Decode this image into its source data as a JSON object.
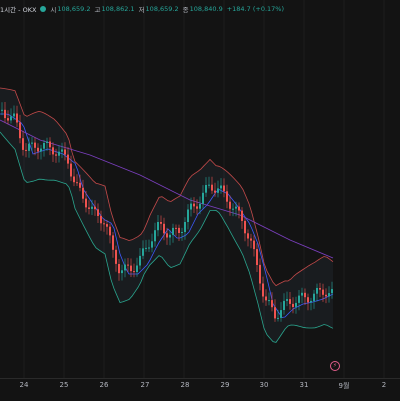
{
  "header": {
    "title": "1시간 - OKX",
    "open_label": "시",
    "open_value": "108,659.2",
    "high_label": "고",
    "high_value": "108,862.1",
    "low_label": "저",
    "low_value": "108,659.2",
    "close_label": "종",
    "close_value": "108,840.9",
    "change": "+184.7 (+0.17%)",
    "status_color": "#26a69a"
  },
  "colors": {
    "up": "#26a69a",
    "down": "#ef5350",
    "bb_upper": "#c44a4a",
    "bb_lower": "#2aa58e",
    "ma_fast": "#3d5afe",
    "ma_slow": "#7b3fbf"
  },
  "x_axis": {
    "labels": [
      "24",
      "25",
      "26",
      "27",
      "28",
      "29",
      "30",
      "31",
      "9월",
      "2"
    ]
  },
  "event_marker": "⚡",
  "chart_data": {
    "type": "candlestick",
    "x_labels": [
      "24",
      "25",
      "26",
      "27",
      "28",
      "29",
      "30",
      "31",
      "9월",
      "2"
    ],
    "bollinger": true,
    "moving_averages": 2,
    "series_hint": "hourly BTC price, downtrend 24→25, range 26-29 with spike on 28-29, drop on 30, slight recovery on 31"
  }
}
